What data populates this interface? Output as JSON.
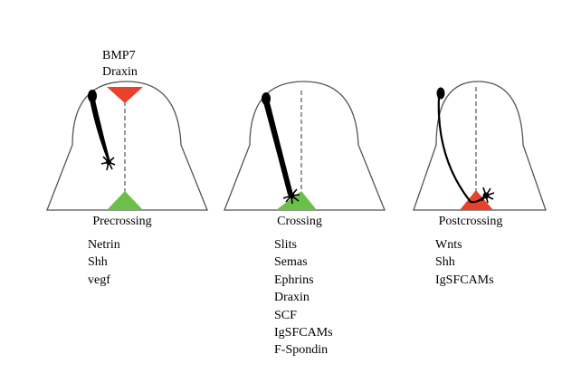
{
  "top_labels": [
    "BMP7",
    "Draxin"
  ],
  "panels": [
    {
      "stage": "Precrossing",
      "factors": [
        "Netrin",
        "Shh",
        "vegf"
      ]
    },
    {
      "stage": "Crossing",
      "factors": [
        "Slits",
        "Semas",
        "Ephrins",
        "Draxin",
        "SCF",
        "IgSFCAMs",
        "F-Spondin"
      ]
    },
    {
      "stage": "Postcrossing",
      "factors": [
        "Wnts",
        "Shh",
        "IgSFCAMs"
      ]
    }
  ],
  "colors": {
    "outline": "#555555",
    "axon": "#000000",
    "roof_plate_red": "#e8412c",
    "floor_plate_green": "#6cc04a",
    "floor_plate_red": "#e8412c"
  }
}
